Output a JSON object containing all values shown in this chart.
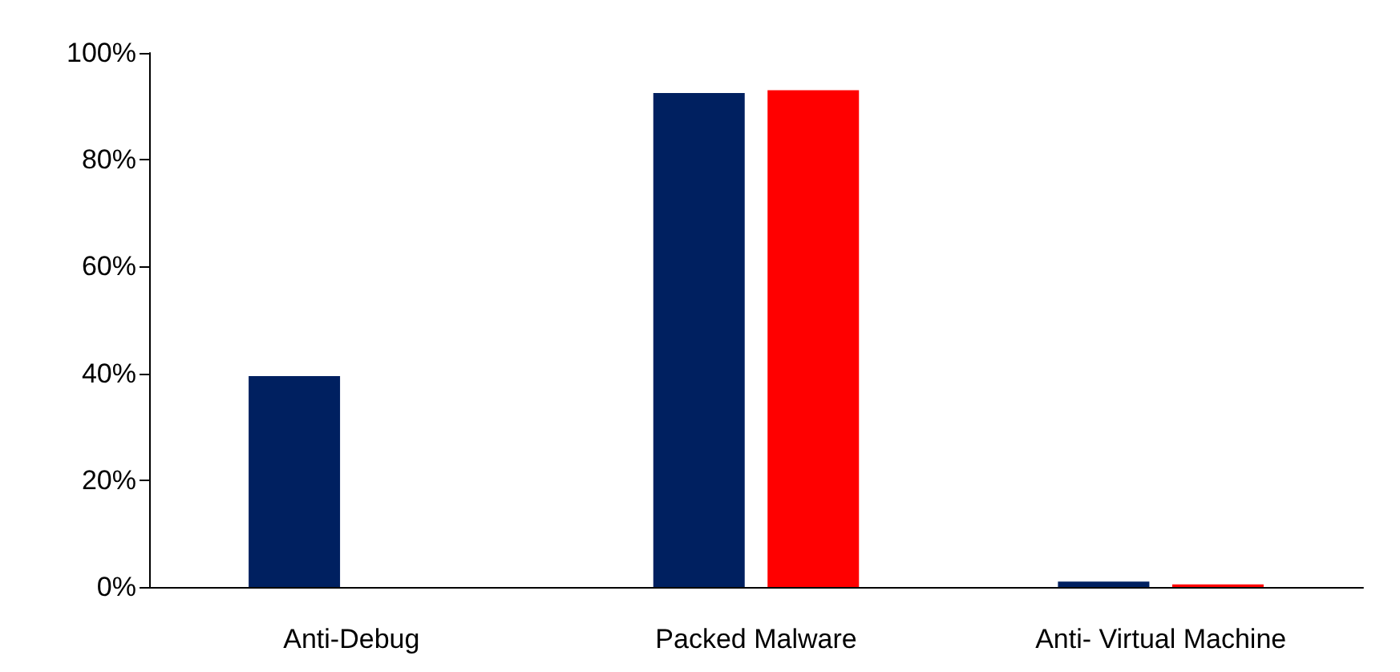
{
  "chart_data": {
    "type": "bar",
    "categories": [
      "Anti-Debug",
      "Packed Malware",
      "Anti- Virtual Machine"
    ],
    "series": [
      {
        "color": "#002060",
        "values": [
          39.5,
          92.5,
          1
        ]
      },
      {
        "color": "#ff0000",
        "values": [
          0,
          93,
          0.5
        ]
      }
    ],
    "ylim": [
      0,
      100
    ],
    "yticks": [
      {
        "value": 0,
        "label": "0%"
      },
      {
        "value": 20,
        "label": "20%"
      },
      {
        "value": 40,
        "label": "40%"
      },
      {
        "value": 60,
        "label": "60%"
      },
      {
        "value": 80,
        "label": "80%"
      },
      {
        "value": 100,
        "label": "100%"
      }
    ],
    "grid": false
  }
}
